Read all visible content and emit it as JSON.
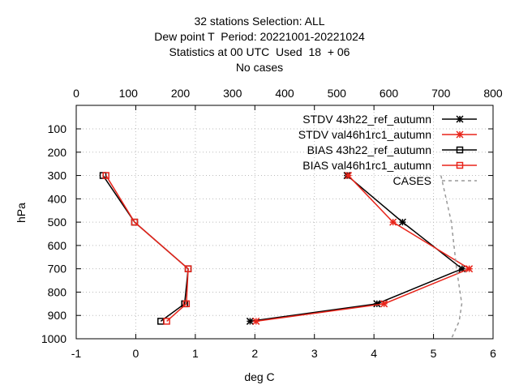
{
  "titles": [
    "32 stations Selection: ALL",
    "Dew point T  Period: 20221001-20221024",
    "Statistics at 00 UTC  Used  18  + 06",
    "No cases"
  ],
  "chart_data": {
    "type": "line",
    "ylabel": "hPa",
    "xlabel": "deg C",
    "x_range": [
      -1,
      6
    ],
    "y_range": [
      1000,
      100
    ],
    "x2_range": [
      0,
      800
    ],
    "x_ticks": [
      "-1",
      "0",
      "1",
      "2",
      "3",
      "4",
      "5",
      "6"
    ],
    "x2_ticks": [
      "0",
      "100",
      "200",
      "300",
      "400",
      "500",
      "600",
      "700",
      "800"
    ],
    "y_ticks": [
      "100",
      "200",
      "300",
      "400",
      "500",
      "600",
      "700",
      "800",
      "900",
      "1000"
    ],
    "grid": true,
    "legend_position": "top-right",
    "levels": [
      300,
      500,
      700,
      850,
      925
    ],
    "series": [
      {
        "name": "STDV 43h22_ref_autumn",
        "legend_label": "STDV 43h22_ref_autumn",
        "axis": "x",
        "color": "#000000",
        "marker": "star",
        "values": [
          3.55,
          4.48,
          5.48,
          4.05,
          1.92
        ]
      },
      {
        "name": "STDV val46h1rc1_autumn",
        "legend_label": "STDV val46h1rc1_autumn",
        "axis": "x",
        "color": "#e8241a",
        "marker": "star",
        "values": [
          3.57,
          4.32,
          5.6,
          4.17,
          2.02
        ]
      },
      {
        "name": "BIAS 43h22_ref_autumn",
        "legend_label": "BIAS 43h22_ref_autumn",
        "axis": "x",
        "color": "#000000",
        "marker": "square",
        "values": [
          -0.55,
          -0.02,
          0.88,
          0.82,
          0.42
        ]
      },
      {
        "name": "BIAS val46h1rc1_autumn",
        "legend_label": "BIAS val46h1rc1_autumn",
        "axis": "x",
        "color": "#e8241a",
        "marker": "square",
        "values": [
          -0.5,
          -0.02,
          0.88,
          0.85,
          0.52
        ]
      },
      {
        "name": "CASES",
        "legend_label": "CASES",
        "axis": "x2",
        "color": "#999999",
        "marker": "none",
        "dashed": true,
        "levels": [
          300,
          500,
          700,
          850,
          925,
          1000
        ],
        "values": [
          700,
          720,
          730,
          740,
          735,
          720
        ]
      }
    ]
  }
}
